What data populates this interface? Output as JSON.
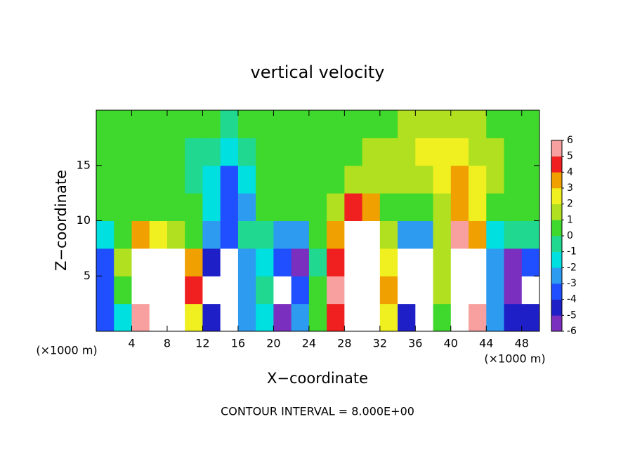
{
  "chart_data": {
    "type": "heatmap",
    "title": "vertical velocity",
    "xlabel": "X−coordinate",
    "ylabel": "Z−coordinate",
    "xunit_label": "(×1000 m)",
    "yunit_label": "(×1000 m)",
    "footnote": "CONTOUR INTERVAL = 8.000E+00",
    "xlim": [
      0,
      50
    ],
    "ylim": [
      0,
      20
    ],
    "xticks": [
      4,
      8,
      12,
      16,
      20,
      24,
      28,
      32,
      36,
      40,
      44,
      48
    ],
    "yticks": [
      5,
      10,
      15
    ],
    "x": [
      1,
      3,
      5,
      7,
      9,
      11,
      13,
      15,
      17,
      19,
      21,
      23,
      25,
      27,
      29,
      31,
      33,
      35,
      37,
      39,
      41,
      43,
      45,
      47,
      49
    ],
    "y": [
      1.25,
      3.75,
      6.25,
      8.75,
      11.25,
      13.75,
      16.25,
      18.75
    ],
    "values": [
      [
        -4,
        -2,
        6,
        8,
        7,
        2,
        -5,
        -7,
        -3,
        -2,
        -6,
        -3,
        0,
        4,
        9,
        8,
        2,
        -5,
        -7,
        0,
        8,
        6,
        -3,
        -5,
        -5
      ],
      [
        -4,
        0,
        9,
        10,
        10,
        4,
        -7,
        -8,
        -3,
        -1,
        -7,
        -4,
        0,
        5,
        10,
        10,
        3,
        -7,
        -8,
        1,
        10,
        8,
        -3,
        -6,
        -7
      ],
      [
        -4,
        1,
        8,
        9,
        8,
        3,
        -5,
        -7,
        -3,
        -2,
        -4,
        -6,
        -1,
        4,
        10,
        9,
        2,
        -7,
        -7,
        1,
        9,
        7,
        -3,
        -6,
        -4
      ],
      [
        -2,
        0,
        3,
        2,
        1,
        0,
        -3,
        -4,
        -1,
        -1,
        -3,
        -3,
        0,
        3,
        8,
        7,
        1,
        -3,
        -3,
        1,
        5,
        3,
        -2,
        -1,
        -1
      ],
      [
        0,
        0,
        0.5,
        0.5,
        0.5,
        0,
        -2,
        -4,
        -3,
        0,
        0,
        0,
        0.5,
        1,
        4,
        3,
        0.5,
        0,
        0.5,
        1,
        3,
        2,
        0.5,
        0,
        0
      ],
      [
        0.5,
        0.5,
        0.5,
        0,
        0,
        -1,
        -2,
        -4,
        -2,
        0,
        0.5,
        0.5,
        0.5,
        0.5,
        1,
        1,
        1,
        1,
        1.5,
        2,
        3,
        2,
        1,
        0.5,
        0.5
      ],
      [
        0.5,
        0.5,
        0.5,
        0.5,
        0,
        -1,
        -1,
        -2,
        -1,
        0,
        0.5,
        0.5,
        0.5,
        0.5,
        0.5,
        1,
        1,
        1.5,
        2,
        2,
        2,
        1.5,
        1,
        0.5,
        0.5
      ],
      [
        0.5,
        0.5,
        0.5,
        0.5,
        0.5,
        0,
        0,
        -0.5,
        0,
        0.5,
        0.5,
        0.5,
        0.5,
        0.5,
        0.5,
        0.5,
        0.5,
        1,
        1,
        1,
        1,
        1,
        0.5,
        0.5,
        0.5
      ]
    ],
    "zlim": [
      -6,
      6
    ],
    "zticks": [
      -6,
      -5,
      -4,
      -3,
      -2,
      -1,
      0,
      1,
      2,
      3,
      4,
      5,
      6
    ],
    "colors": [
      "#7b2fbf",
      "#1f1fc8",
      "#1f4fff",
      "#2c9bf0",
      "#00e0e0",
      "#20d890",
      "#3fd82c",
      "#b0e020",
      "#f0f020",
      "#f0a000",
      "#f02020",
      "#f8a0a0"
    ],
    "over_color": "#ffffff",
    "under_color": "#ffffff"
  }
}
